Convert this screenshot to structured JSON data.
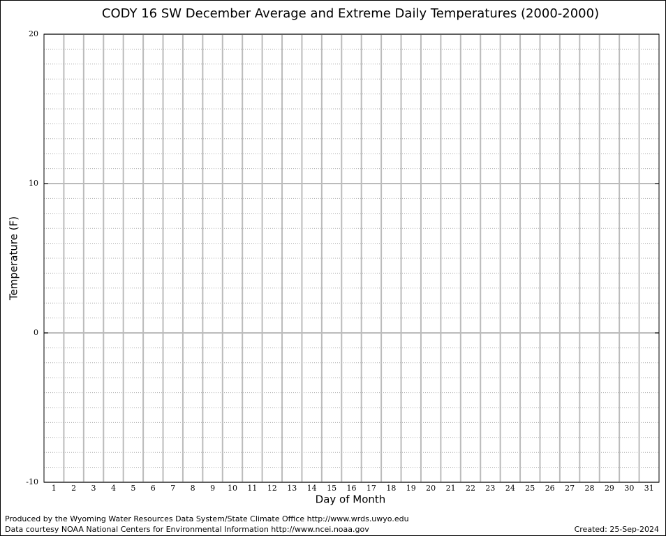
{
  "chart_data": {
    "type": "line",
    "title": "CODY 16 SW December Average and Extreme Daily Temperatures (2000-2000)",
    "x_label": "Day of Month",
    "y_label": "Temperature (F)",
    "categories": [
      "1",
      "2",
      "3",
      "4",
      "5",
      "6",
      "7",
      "8",
      "9",
      "10",
      "11",
      "12",
      "13",
      "14",
      "15",
      "16",
      "17",
      "18",
      "19",
      "20",
      "21",
      "22",
      "23",
      "24",
      "25",
      "26",
      "27",
      "28",
      "29",
      "30",
      "31"
    ],
    "series": [],
    "ylim": [
      -10,
      20
    ],
    "yticks": [
      -10,
      0,
      10,
      20
    ],
    "grid": true,
    "footnotes": [
      "Produced by the Wyoming Water Resources Data System/State Climate Office http://www.wrds.uwyo.edu",
      "Data courtesy NOAA National Centers for Environmental Information http://www.ncei.noaa.gov"
    ],
    "created": "Created: 25-Sep-2024"
  }
}
